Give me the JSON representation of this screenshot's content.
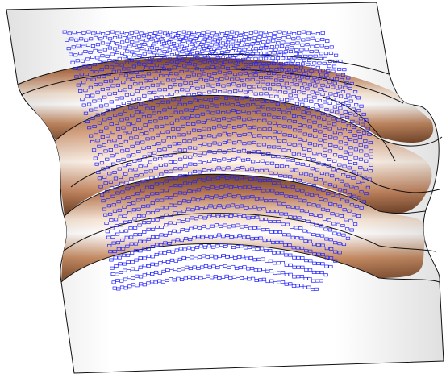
{
  "scene": {
    "type": "cad-surface-with-point-grid",
    "background_color": "#ffffff",
    "surface": {
      "edge_color": "#111111",
      "base_color": "#ffffff",
      "shaded_band_colors": [
        "#8a5a3c",
        "#c9906a",
        "#f6e2cf",
        "#ffffff",
        "#b97a54",
        "#7a4a2e"
      ],
      "bands": 3
    },
    "point_grid": {
      "marker_shape": "hollow-square",
      "marker_color": "#2222ff",
      "approx_rows": 36,
      "approx_cols": 55
    }
  }
}
